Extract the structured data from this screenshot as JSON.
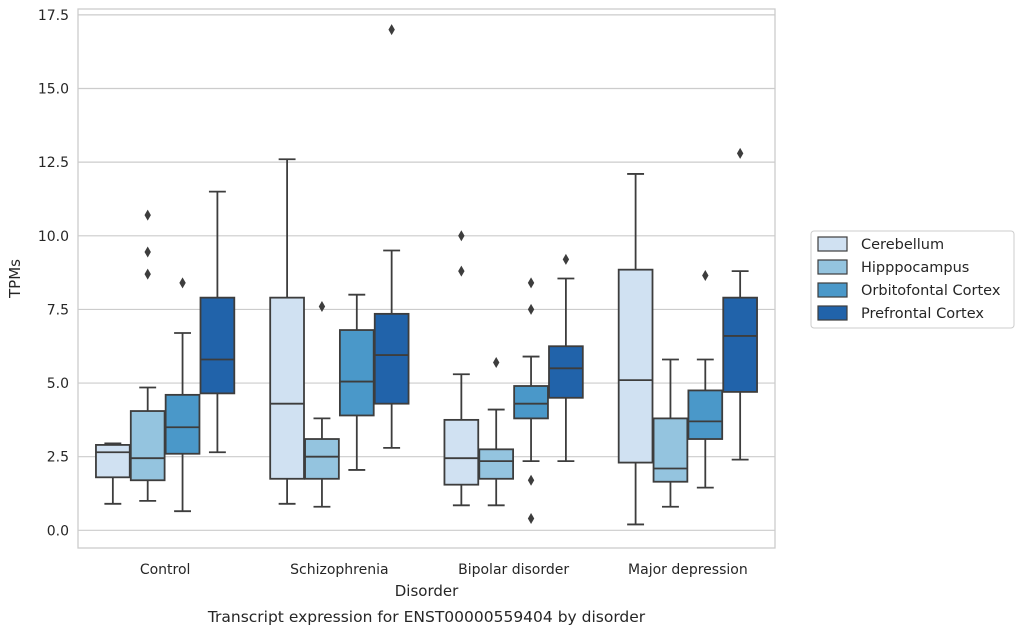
{
  "chart_data": {
    "type": "box",
    "title": "Transcript expression for ENST00000559404 by disorder",
    "xlabel": "Disorder",
    "ylabel": "TPMs",
    "ylim": [
      -0.6,
      17.7
    ],
    "yticks": [
      0.0,
      2.5,
      5.0,
      7.5,
      10.0,
      12.5,
      15.0,
      17.5
    ],
    "ytick_labels": [
      "0.0",
      "2.5",
      "5.0",
      "7.5",
      "10.0",
      "12.5",
      "15.0",
      "17.5"
    ],
    "grid": "horizontal",
    "legend_position": "right",
    "categories": [
      "Control",
      "Schizophrenia",
      "Bipolar disorder",
      "Major depression"
    ],
    "series": [
      {
        "name": "Cerebellum",
        "color": "#d0e1f2",
        "boxes": [
          {
            "whislo": 0.9,
            "q1": 1.8,
            "med": 2.65,
            "q3": 2.9,
            "whishi": 2.95,
            "fliers": []
          },
          {
            "whislo": 0.9,
            "q1": 1.75,
            "med": 4.3,
            "q3": 7.9,
            "whishi": 12.6,
            "fliers": []
          },
          {
            "whislo": 0.85,
            "q1": 1.55,
            "med": 2.45,
            "q3": 3.75,
            "whishi": 5.3,
            "fliers": [
              8.8,
              10.0
            ]
          },
          {
            "whislo": 0.2,
            "q1": 2.3,
            "med": 5.1,
            "q3": 8.85,
            "whishi": 12.1,
            "fliers": []
          }
        ]
      },
      {
        "name": "Hipppocampus",
        "color": "#94c4df",
        "boxes": [
          {
            "whislo": 1.0,
            "q1": 1.7,
            "med": 2.45,
            "q3": 4.05,
            "whishi": 4.85,
            "fliers": [
              8.7,
              9.45,
              10.7
            ]
          },
          {
            "whislo": 0.8,
            "q1": 1.75,
            "med": 2.5,
            "q3": 3.1,
            "whishi": 3.8,
            "fliers": [
              7.6
            ]
          },
          {
            "whislo": 0.85,
            "q1": 1.75,
            "med": 2.35,
            "q3": 2.75,
            "whishi": 4.1,
            "fliers": [
              5.7
            ]
          },
          {
            "whislo": 0.8,
            "q1": 1.65,
            "med": 2.1,
            "q3": 3.8,
            "whishi": 5.8,
            "fliers": []
          }
        ]
      },
      {
        "name": "Orbitofontal Cortex",
        "color": "#4a98c9",
        "boxes": [
          {
            "whislo": 0.65,
            "q1": 2.6,
            "med": 3.5,
            "q3": 4.6,
            "whishi": 6.7,
            "fliers": [
              8.4
            ]
          },
          {
            "whislo": 2.05,
            "q1": 3.9,
            "med": 5.05,
            "q3": 6.8,
            "whishi": 8.0,
            "fliers": []
          },
          {
            "whislo": 2.35,
            "q1": 3.8,
            "med": 4.3,
            "q3": 4.9,
            "whishi": 5.9,
            "fliers": [
              0.4,
              1.7,
              7.5,
              8.4
            ]
          },
          {
            "whislo": 1.45,
            "q1": 3.1,
            "med": 3.7,
            "q3": 4.75,
            "whishi": 5.8,
            "fliers": [
              8.65
            ]
          }
        ]
      },
      {
        "name": "Prefrontal Cortex",
        "color": "#2163aa",
        "boxes": [
          {
            "whislo": 2.65,
            "q1": 4.65,
            "med": 5.8,
            "q3": 7.9,
            "whishi": 11.5,
            "fliers": []
          },
          {
            "whislo": 2.8,
            "q1": 4.3,
            "med": 5.95,
            "q3": 7.35,
            "whishi": 9.5,
            "fliers": [
              17.0
            ]
          },
          {
            "whislo": 2.35,
            "q1": 4.5,
            "med": 5.5,
            "q3": 6.25,
            "whishi": 8.55,
            "fliers": [
              9.2
            ]
          },
          {
            "whislo": 2.4,
            "q1": 4.7,
            "med": 6.6,
            "q3": 7.9,
            "whishi": 8.8,
            "fliers": [
              12.8
            ]
          }
        ]
      }
    ]
  }
}
